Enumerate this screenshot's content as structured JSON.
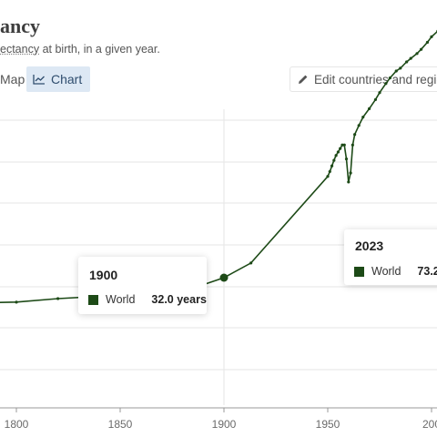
{
  "header": {
    "title": "ancy",
    "subtitle_link": "ectancy",
    "subtitle_rest": " at birth, in a given year."
  },
  "tabs": [
    {
      "label": "Map",
      "active": false
    },
    {
      "label": "Chart",
      "active": true
    }
  ],
  "edit_button": {
    "label": "Edit countries and regio",
    "icon": "pencil-icon"
  },
  "colors": {
    "series": "#1d4a17",
    "grid": "#e5e5e5",
    "active_tab_bg": "#dde8f4"
  },
  "tooltips": [
    {
      "year": "1900",
      "series": "World",
      "value": "32.0 years"
    },
    {
      "year": "2023",
      "series": "World",
      "value": "73.2 y"
    }
  ],
  "chart_data": {
    "type": "line",
    "x_ticks": [
      "1800",
      "1850",
      "1900",
      "1950",
      "200"
    ],
    "grid": true,
    "highlighted_years": [
      1900
    ],
    "series": [
      {
        "name": "World",
        "x": [
          1770,
          1800,
          1820,
          1850,
          1870,
          1880,
          1890,
          1900,
          1913,
          1950,
          1951,
          1952,
          1953,
          1954,
          1955,
          1956,
          1957,
          1958,
          1959,
          1960,
          1961,
          1962,
          1963,
          1965,
          1967,
          1970,
          1973,
          1975,
          1978,
          1980,
          1983,
          1985,
          1988,
          1990,
          1993,
          1995,
          1998,
          2000,
          2003,
          2005,
          2008,
          2010,
          2013,
          2015,
          2017,
          2019,
          2020,
          2021,
          2022,
          2023
        ],
        "y": [
          28.3,
          28.5,
          29.0,
          29.5,
          29.9,
          30.4,
          31.0,
          32.0,
          34.1,
          46.5,
          47.2,
          48.0,
          48.8,
          49.5,
          50.0,
          50.5,
          51.0,
          51.0,
          49.0,
          45.7,
          47.0,
          51.0,
          52.5,
          53.8,
          55.0,
          56.2,
          57.5,
          58.5,
          59.8,
          60.6,
          61.6,
          62.0,
          62.9,
          63.4,
          64.1,
          64.7,
          65.7,
          66.5,
          67.3,
          67.9,
          68.9,
          69.6,
          70.5,
          71.2,
          71.8,
          72.8,
          72.0,
          71.0,
          72.6,
          73.2
        ]
      }
    ]
  }
}
